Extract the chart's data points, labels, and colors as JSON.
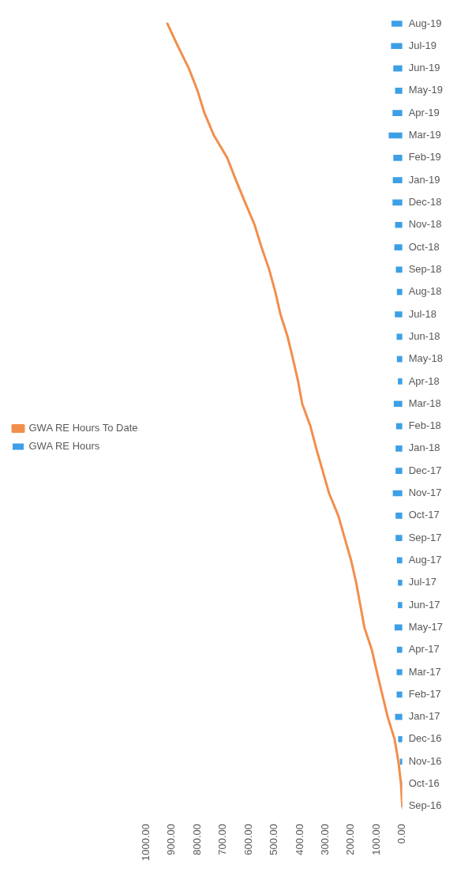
{
  "chart_data": {
    "type": "bar",
    "orientation": "horizontal",
    "categories": [
      "Aug-19",
      "Jul-19",
      "Jun-19",
      "May-19",
      "Apr-19",
      "Mar-19",
      "Feb-19",
      "Jan-19",
      "Dec-18",
      "Nov-18",
      "Oct-18",
      "Sep-18",
      "Aug-18",
      "Jul-18",
      "Jun-18",
      "May-18",
      "Apr-18",
      "Mar-18",
      "Feb-18",
      "Jan-18",
      "Dec-17",
      "Nov-17",
      "Oct-17",
      "Sep-17",
      "Aug-17",
      "Jul-17",
      "Jun-17",
      "May-17",
      "Apr-17",
      "Mar-17",
      "Feb-17",
      "Jan-17",
      "Dec-16",
      "Nov-16",
      "Oct-16",
      "Sep-16"
    ],
    "series": [
      {
        "name": "GWA RE Hours",
        "color": "#3d9fe6",
        "values": [
          41,
          43,
          34,
          27,
          37,
          52,
          34,
          36,
          37,
          27,
          30,
          24,
          20,
          28,
          21,
          20,
          16,
          32,
          23,
          25,
          25,
          36,
          25,
          25,
          20,
          16,
          16,
          29,
          20,
          21,
          21,
          27,
          15,
          8,
          0,
          0
        ]
      },
      {
        "name": "GWA RE Hours To Date",
        "type": "line",
        "color": "#f28e4c",
        "values": [
          918,
          877,
          834,
          800,
          773,
          736,
          684,
          650,
          614,
          577,
          550,
          520,
          496,
          476,
          448,
          427,
          407,
          391,
          359,
          336,
          311,
          286,
          250,
          225,
          200,
          180,
          164,
          148,
          119,
          99,
          78,
          57,
          30,
          15,
          5,
          0
        ]
      }
    ],
    "xlim": [
      1000,
      0
    ],
    "xticks": [
      {
        "value": 0,
        "label": "0.00"
      },
      {
        "value": 100,
        "label": "100.00"
      },
      {
        "value": 200,
        "label": "200.00"
      },
      {
        "value": 300,
        "label": "300.00"
      },
      {
        "value": 400,
        "label": "400.00"
      },
      {
        "value": 500,
        "label": "500.00"
      },
      {
        "value": 600,
        "label": "600.00"
      },
      {
        "value": 700,
        "label": "700.00"
      },
      {
        "value": 800,
        "label": "800.00"
      },
      {
        "value": 900,
        "label": "900.00"
      },
      {
        "value": 1000,
        "label": "1000.00"
      }
    ],
    "grid": false,
    "legend": "left",
    "marker": "none"
  }
}
